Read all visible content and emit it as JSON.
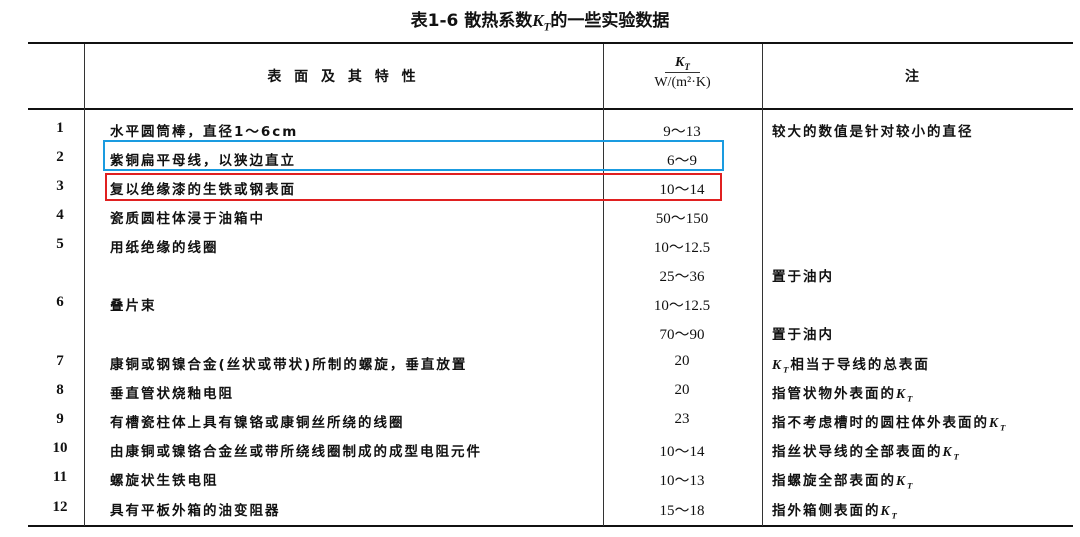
{
  "title": {
    "prefix": "表1-6  散热系数",
    "suffix": "的一些实验数据"
  },
  "kt_symbol": {
    "base": "K",
    "sub": "T"
  },
  "header": {
    "surface": "表 面 及 其 特 性",
    "unit": "W/(m²·K)",
    "note": "注"
  },
  "highlight_colors": {
    "blue": "#1a9be0",
    "red": "#e02020"
  },
  "rows": [
    {
      "num": "1",
      "desc": "水平圆筒棒，直径1～6cm",
      "value": "9～13",
      "note": "较大的数值是针对较小的直径",
      "kt": ""
    },
    {
      "num": "2",
      "desc": "紫铜扁平母线，以狭边直立",
      "value": "6～9",
      "note": "",
      "kt": "",
      "highlight": "blue"
    },
    {
      "num": "3",
      "desc": "复以绝缘漆的生铁或钢表面",
      "value": "10～14",
      "note": "",
      "kt": "",
      "highlight": "red"
    },
    {
      "num": "4",
      "desc": "瓷质圆柱体浸于油箱中",
      "value": "50～150",
      "note": "",
      "kt": ""
    },
    {
      "num": "5",
      "desc": "用纸绝缘的线圈",
      "value": "10～12.5",
      "note": "",
      "kt": ""
    },
    {
      "num": "",
      "desc": "",
      "value": "25～36",
      "note": "置于油内",
      "kt": ""
    },
    {
      "num": "6",
      "desc": "叠片束",
      "value": "10～12.5",
      "note": "",
      "kt": ""
    },
    {
      "num": "",
      "desc": "",
      "value": "70～90",
      "note": "置于油内",
      "kt": ""
    },
    {
      "num": "7",
      "desc": "康铜或钢镍合金(丝状或带状)所制的螺旋，垂直放置",
      "value": "20",
      "note": "相当于导线的总表面",
      "kt": "start"
    },
    {
      "num": "8",
      "desc": "垂直管状烧釉电阻",
      "value": "20",
      "note": "指管状物外表面的",
      "kt": "end"
    },
    {
      "num": "9",
      "desc": "有槽瓷柱体上具有镍铬或康铜丝所绕的线圈",
      "value": "23",
      "note": "指不考虑槽时的圆柱体外表面的",
      "kt": "end"
    },
    {
      "num": "10",
      "desc": "由康铜或镍铬合金丝或带所绕线圈制成的成型电阻元件",
      "value": "10～14",
      "note": "指丝状导线的全部表面的",
      "kt": "end"
    },
    {
      "num": "11",
      "desc": "螺旋状生铁电阻",
      "value": "10～13",
      "note": "指螺旋全部表面的",
      "kt": "end"
    },
    {
      "num": "12",
      "desc": "具有平板外箱的油变阻器",
      "value": "15～18",
      "note": "指外箱侧表面的",
      "kt": "end"
    }
  ]
}
